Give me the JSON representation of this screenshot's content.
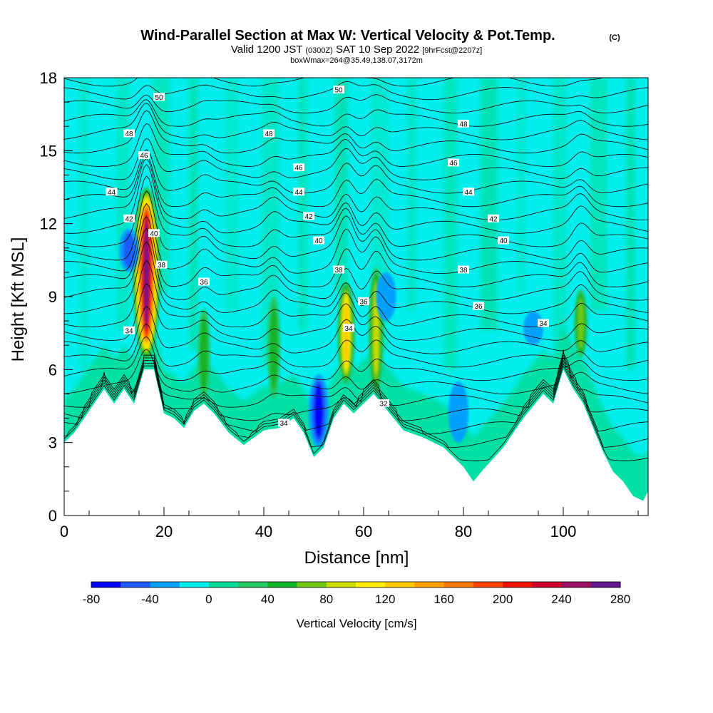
{
  "header": {
    "title": "Wind-Parallel Section at Max W: Vertical Velocity & Pot.Temp.",
    "copyright": "(C)",
    "valid_prefix": "Valid 1200 JST",
    "utc": "(0300Z)",
    "valid_date": "SAT 10 Sep 2022",
    "forecast": "[9hrFcst@2207z]",
    "box_info": "boxWmax=264@35.49,138.07,3172m"
  },
  "chart_data": {
    "type": "heatmap",
    "xlabel": "Distance [nm]",
    "ylabel": "Height [Kft MSL]",
    "xlim": [
      0,
      117
    ],
    "ylim": [
      0,
      18
    ],
    "x_ticks": [
      0,
      20,
      40,
      60,
      80,
      100
    ],
    "y_ticks": [
      0,
      3,
      6,
      9,
      12,
      15,
      18
    ],
    "colorbar": {
      "label": "Vertical Velocity [cm/s]",
      "ticks": [
        -80,
        -40,
        0,
        40,
        80,
        120,
        160,
        200,
        240,
        280
      ],
      "min": -80,
      "max": 280,
      "step": 20,
      "colors": [
        "#0000ff",
        "#1e5cff",
        "#00a0ff",
        "#00eeee",
        "#00dc96",
        "#28c864",
        "#14b428",
        "#6ec814",
        "#c8dc00",
        "#ffee00",
        "#ffc800",
        "#ffa000",
        "#ff7800",
        "#ff4600",
        "#ee1400",
        "#cc0028",
        "#9e1060",
        "#64148c"
      ]
    },
    "terrain_kft": [
      [
        0,
        3.0
      ],
      [
        2,
        3.4
      ],
      [
        4,
        4.0
      ],
      [
        6,
        4.6
      ],
      [
        8,
        5.2
      ],
      [
        10,
        4.6
      ],
      [
        12,
        5.2
      ],
      [
        14,
        4.6
      ],
      [
        16,
        6.0
      ],
      [
        18,
        6.0
      ],
      [
        20,
        4.2
      ],
      [
        22,
        4.0
      ],
      [
        24,
        3.6
      ],
      [
        26,
        4.3
      ],
      [
        28,
        4.6
      ],
      [
        30,
        4.2
      ],
      [
        33,
        3.4
      ],
      [
        36,
        2.9
      ],
      [
        38,
        3.2
      ],
      [
        40,
        3.5
      ],
      [
        43,
        3.6
      ],
      [
        46,
        4.0
      ],
      [
        48,
        3.4
      ],
      [
        50,
        2.4
      ],
      [
        52,
        2.8
      ],
      [
        54,
        4.0
      ],
      [
        56,
        4.6
      ],
      [
        58,
        4.2
      ],
      [
        60,
        4.6
      ],
      [
        62,
        5.0
      ],
      [
        64,
        4.5
      ],
      [
        66,
        4.0
      ],
      [
        68,
        3.5
      ],
      [
        72,
        3.2
      ],
      [
        76,
        2.8
      ],
      [
        80,
        2.0
      ],
      [
        82,
        1.4
      ],
      [
        84,
        1.9
      ],
      [
        88,
        2.8
      ],
      [
        92,
        4.0
      ],
      [
        96,
        5.0
      ],
      [
        98,
        4.6
      ],
      [
        100,
        6.0
      ],
      [
        102,
        5.2
      ],
      [
        104,
        4.6
      ],
      [
        106,
        3.6
      ],
      [
        108,
        2.6
      ],
      [
        110,
        1.8
      ],
      [
        112,
        1.4
      ],
      [
        114,
        0.8
      ],
      [
        116,
        0.6
      ],
      [
        117,
        1.0
      ]
    ],
    "updrafts": [
      {
        "x": 16.5,
        "zbottom": 6.4,
        "ztop": 13.5,
        "max": 264
      },
      {
        "x": 56.5,
        "zbottom": 5.4,
        "ztop": 9.6,
        "max": 130
      },
      {
        "x": 62.5,
        "zbottom": 5.0,
        "ztop": 10.2,
        "max": 95
      },
      {
        "x": 103.5,
        "zbottom": 6.5,
        "ztop": 9.3,
        "max": 75
      },
      {
        "x": 28,
        "zbottom": 4.8,
        "ztop": 8.5,
        "max": 50
      },
      {
        "x": 42,
        "zbottom": 4.8,
        "ztop": 9.0,
        "max": 55
      }
    ],
    "downdrafts": [
      {
        "x": 13,
        "zbottom": 10.0,
        "ztop": 11.8,
        "min": -50
      },
      {
        "x": 51,
        "zbottom": 2.8,
        "ztop": 5.8,
        "min": -75
      },
      {
        "x": 79,
        "zbottom": 3.0,
        "ztop": 5.5,
        "min": -35
      },
      {
        "x": 94,
        "zbottom": 7.0,
        "ztop": 8.4,
        "min": -35
      },
      {
        "x": 64.5,
        "zbottom": 8.0,
        "ztop": 10.0,
        "min": -30
      }
    ],
    "theta_levels": [
      32,
      34,
      36,
      38,
      40,
      42,
      44,
      46,
      48,
      50
    ],
    "contour_labels": [
      {
        "text": "50",
        "x": 19,
        "y": 17.2
      },
      {
        "text": "50",
        "x": 55,
        "y": 17.5
      },
      {
        "text": "48",
        "x": 13,
        "y": 15.7
      },
      {
        "text": "48",
        "x": 41,
        "y": 15.7
      },
      {
        "text": "48",
        "x": 80,
        "y": 16.1
      },
      {
        "text": "46",
        "x": 16,
        "y": 14.8
      },
      {
        "text": "46",
        "x": 47,
        "y": 14.3
      },
      {
        "text": "46",
        "x": 78,
        "y": 14.5
      },
      {
        "text": "44",
        "x": 9.5,
        "y": 13.3
      },
      {
        "text": "44",
        "x": 47,
        "y": 13.3
      },
      {
        "text": "44",
        "x": 81,
        "y": 13.3
      },
      {
        "text": "42",
        "x": 13,
        "y": 12.2
      },
      {
        "text": "42",
        "x": 49,
        "y": 12.3
      },
      {
        "text": "42",
        "x": 86,
        "y": 12.2
      },
      {
        "text": "40",
        "x": 18,
        "y": 11.6
      },
      {
        "text": "40",
        "x": 51,
        "y": 11.3
      },
      {
        "text": "40",
        "x": 88,
        "y": 11.3
      },
      {
        "text": "38",
        "x": 19.5,
        "y": 10.3
      },
      {
        "text": "38",
        "x": 55,
        "y": 10.1
      },
      {
        "text": "38",
        "x": 80,
        "y": 10.1
      },
      {
        "text": "36",
        "x": 28,
        "y": 9.6
      },
      {
        "text": "36",
        "x": 60,
        "y": 8.8
      },
      {
        "text": "36",
        "x": 83,
        "y": 8.6
      },
      {
        "text": "34",
        "x": 13,
        "y": 7.6
      },
      {
        "text": "34",
        "x": 57,
        "y": 7.7
      },
      {
        "text": "34",
        "x": 96,
        "y": 7.9
      },
      {
        "text": "34",
        "x": 44,
        "y": 3.8
      },
      {
        "text": "32",
        "x": 64,
        "y": 4.6
      }
    ]
  }
}
